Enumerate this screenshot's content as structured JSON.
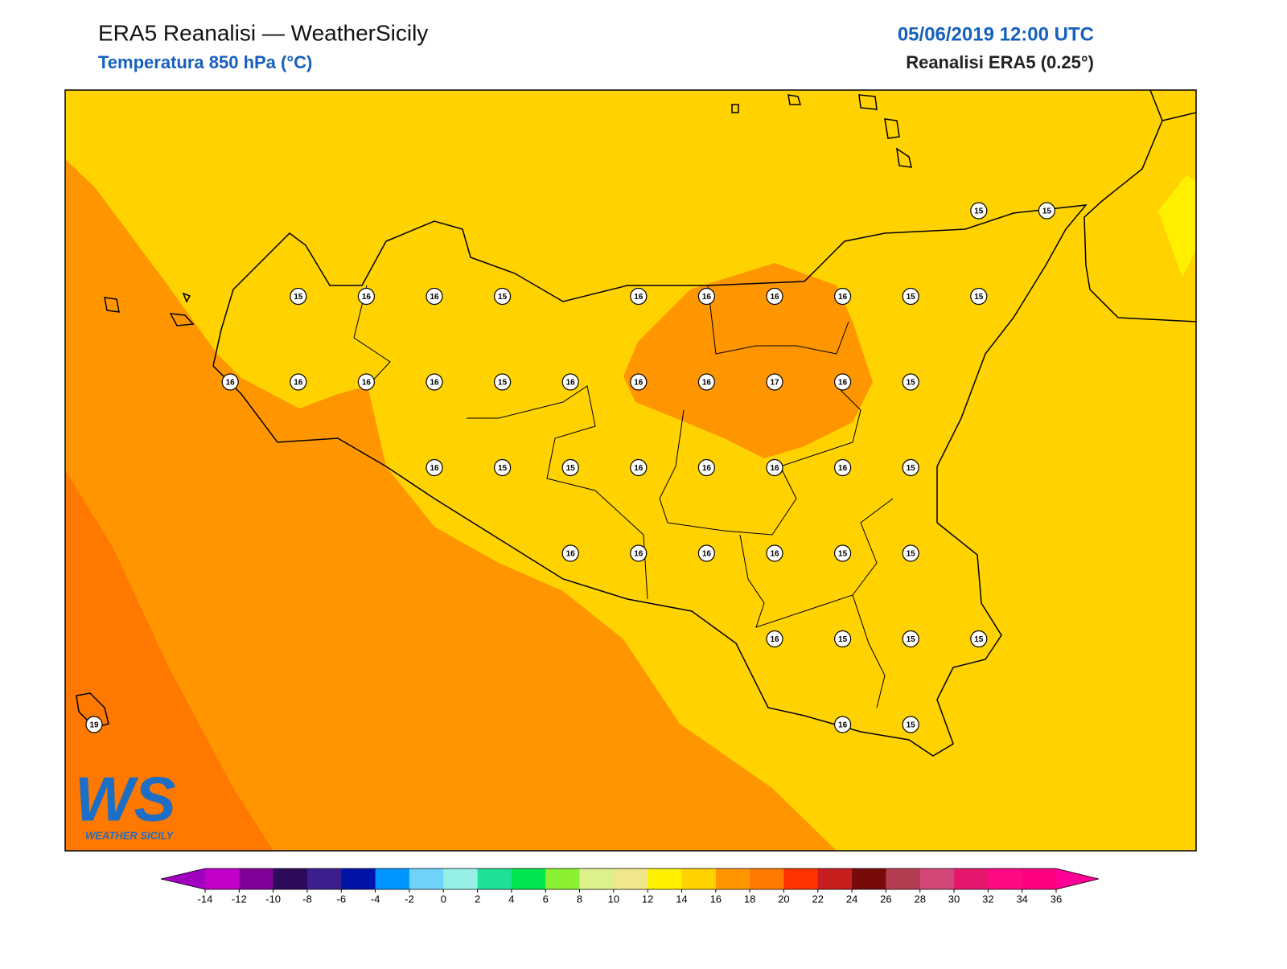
{
  "header": {
    "title": "ERA5 Reanalisi — WeatherSicily",
    "subtitle": "Temperatura 850 hPa (°C)",
    "datetime": "05/06/2019 12:00 UTC",
    "source": "Reanalisi ERA5 (0.25°)"
  },
  "stations": [
    [
      null,
      null,
      null,
      null,
      null,
      null,
      null,
      null,
      null,
      null,
      null,
      null,
      null,
      15,
      15
    ],
    [
      null,
      null,
      null,
      15,
      16,
      16,
      15,
      null,
      16,
      16,
      16,
      16,
      15,
      15,
      null
    ],
    [
      null,
      null,
      16,
      16,
      16,
      16,
      15,
      16,
      16,
      16,
      17,
      16,
      15,
      null,
      null
    ],
    [
      null,
      null,
      null,
      null,
      null,
      16,
      15,
      15,
      16,
      16,
      16,
      16,
      15,
      null,
      null
    ],
    [
      null,
      null,
      null,
      null,
      null,
      null,
      null,
      16,
      16,
      16,
      16,
      15,
      15,
      null,
      null
    ],
    [
      null,
      null,
      null,
      null,
      null,
      null,
      null,
      null,
      null,
      null,
      16,
      15,
      15,
      15,
      null
    ],
    [
      19,
      null,
      null,
      null,
      null,
      null,
      null,
      null,
      null,
      null,
      null,
      16,
      15,
      null,
      null
    ]
  ],
  "colorbar": {
    "ticks": [
      -14,
      -12,
      -10,
      -8,
      -6,
      -4,
      -2,
      0,
      2,
      4,
      6,
      8,
      10,
      12,
      14,
      16,
      18,
      20,
      22,
      24,
      26,
      28,
      30,
      32,
      34,
      36
    ],
    "colors": [
      "#c000c8",
      "#80009a",
      "#2e0a5a",
      "#3c1e8c",
      "#0014a8",
      "#0096ff",
      "#6ed2fa",
      "#96f0e6",
      "#1ee196",
      "#00e650",
      "#8cf032",
      "#dcf08c",
      "#f0e68c",
      "#fff000",
      "#ffd200",
      "#ff9600",
      "#ff7800",
      "#ff3200",
      "#c81e1e",
      "#780a0a",
      "#b43c50",
      "#d24678",
      "#e6186e",
      "#ff0a82",
      "#ff0082"
    ],
    "under": "#a000c0",
    "over": "#ff0096"
  },
  "logo": {
    "letters": "WS",
    "name": "WEATHER SICILY"
  }
}
